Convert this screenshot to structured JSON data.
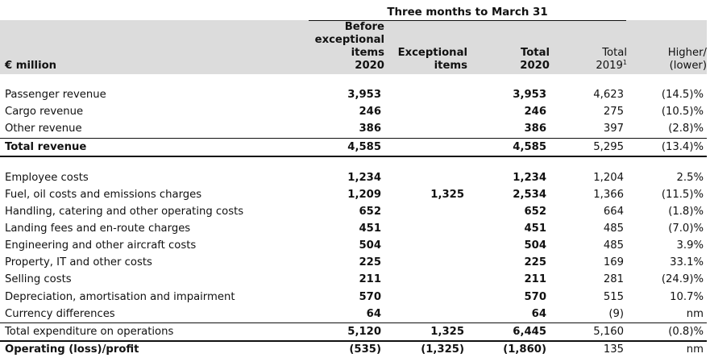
{
  "header": {
    "period": "Three months to March 31",
    "unit_label": "€ million",
    "columns": [
      {
        "lines": [
          "Before",
          "exceptional",
          "items",
          "2020"
        ],
        "bold": true
      },
      {
        "lines": [
          "Exceptional",
          "items"
        ],
        "bold": true
      },
      {
        "lines": [
          "Total",
          "2020"
        ],
        "bold": true
      },
      {
        "lines": [
          "Total",
          "2019"
        ],
        "footnote": "1",
        "bold": false
      },
      {
        "lines": [
          "Higher/",
          "(lower)"
        ],
        "bold": false
      }
    ]
  },
  "sections": [
    {
      "rows": [
        {
          "label": "Passenger revenue",
          "values": [
            "3,953",
            "",
            "3,953",
            "4,623",
            "(14.5)%"
          ]
        },
        {
          "label": "Cargo revenue",
          "values": [
            "246",
            "",
            "246",
            "275",
            "(10.5)%"
          ]
        },
        {
          "label": "Other revenue",
          "values": [
            "386",
            "",
            "386",
            "397",
            "(2.8)%"
          ]
        }
      ],
      "total": {
        "label": "Total revenue",
        "values": [
          "4,585",
          "",
          "4,585",
          "5,295",
          "(13.4)%"
        ]
      }
    },
    {
      "rows": [
        {
          "label": "Employee costs",
          "values": [
            "1,234",
            "",
            "1,234",
            "1,204",
            "2.5%"
          ]
        },
        {
          "label": "Fuel, oil costs and emissions charges",
          "values": [
            "1,209",
            "1,325",
            "2,534",
            "1,366",
            "(11.5)%"
          ]
        },
        {
          "label": "Handling, catering and other operating costs",
          "values": [
            "652",
            "",
            "652",
            "664",
            "(1.8)%"
          ]
        },
        {
          "label": "Landing fees and en-route charges",
          "values": [
            "451",
            "",
            "451",
            "485",
            "(7.0)%"
          ]
        },
        {
          "label": "Engineering and other aircraft costs",
          "values": [
            "504",
            "",
            "504",
            "485",
            "3.9%"
          ]
        },
        {
          "label": "Property, IT and other costs",
          "values": [
            "225",
            "",
            "225",
            "169",
            "33.1%"
          ]
        },
        {
          "label": "Selling costs",
          "values": [
            "211",
            "",
            "211",
            "281",
            "(24.9)%"
          ]
        },
        {
          "label": "Depreciation, amortisation and impairment",
          "values": [
            "570",
            "",
            "570",
            "515",
            "10.7%"
          ]
        },
        {
          "label": "Currency differences",
          "values": [
            "64",
            "",
            "64",
            "(9)",
            "nm"
          ]
        }
      ],
      "subtotal": {
        "label": "Total expenditure on operations",
        "values": [
          "5,120",
          "1,325",
          "6,445",
          "5,160",
          "(0.8)%"
        ]
      },
      "total": {
        "label": "Operating (loss)/profit",
        "values": [
          "(535)",
          "(1,325)",
          "(1,860)",
          "135",
          "nm"
        ]
      }
    }
  ]
}
